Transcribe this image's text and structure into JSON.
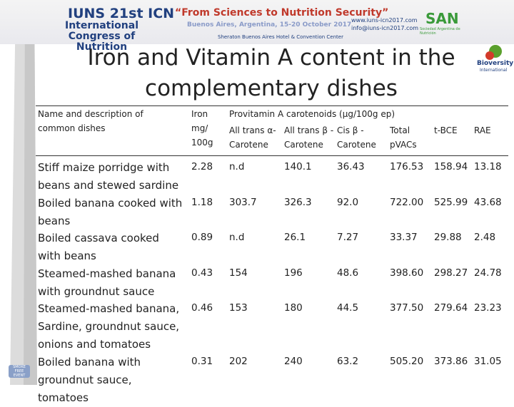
{
  "header": {
    "congress": "IUNS 21st ICN",
    "congress_name": "International Congress of Nutrition",
    "motto": "“From Sciences to Nutrition Security”",
    "place": "Buenos Aires, Argentina, 15-20 October 2017",
    "venue": "Sheraton Buenos Aires Hotel & Convention Center",
    "web": "www.iuns-icn2017.com",
    "email": "info@iuns-icn2017.com",
    "san": "SAN",
    "san_name": "Sociedad Argentina de Nutrición",
    "bioversity": "Bioversity",
    "bioversity_sub": "International",
    "smoke": "SMOKE FREE EVENT"
  },
  "title": "Iron and Vitamin A content in the complementary dishes",
  "table": {
    "columns": [
      "Name and description of common dishes",
      "Iron mg/ 100g",
      "Provitamin A carotenoids (µg/100g ep)"
    ],
    "subcolumns": [
      "All trans α-Carotene",
      "All trans β -Carotene",
      "Cis β -Carotene",
      "Total pVACs",
      "t-BCE",
      "RAE"
    ],
    "rows": [
      [
        "Stiff maize porridge with beans and stewed sardine",
        "2.28",
        "n.d",
        "140.1",
        "36.43",
        "176.53",
        "158.94",
        "13.18"
      ],
      [
        "Boiled banana cooked with beans",
        "1.18",
        "303.7",
        "326.3",
        "92.0",
        "722.00",
        "525.99",
        "43.68"
      ],
      [
        "Boiled cassava cooked with beans",
        "0.89",
        "n.d",
        "26.1",
        "7.27",
        "33.37",
        "29.88",
        "2.48"
      ],
      [
        "Steamed-mashed banana with groundnut sauce",
        "0.43",
        "154",
        "196",
        "48.6",
        "398.60",
        "298.27",
        "24.78"
      ],
      [
        "Steamed-mashed banana, Sardine, groundnut sauce, onions and tomatoes",
        "0.46",
        "153",
        "180",
        "44.5",
        "377.50",
        "279.64",
        "23.23"
      ],
      [
        "Boiled banana with groundnut sauce, tomatoes",
        "0.31",
        "202",
        "240",
        "63.2",
        "505.20",
        "373.86",
        "31.05"
      ]
    ]
  }
}
